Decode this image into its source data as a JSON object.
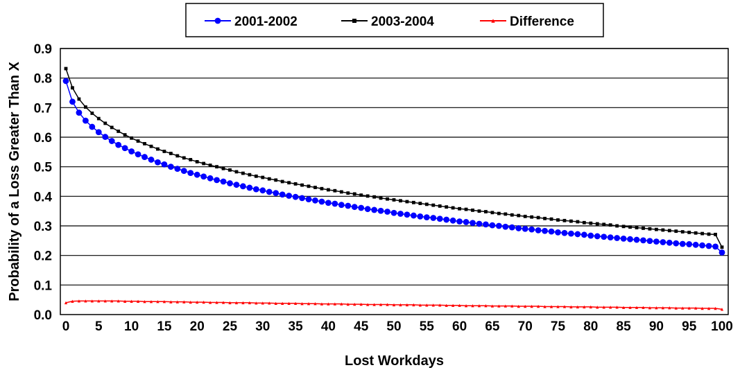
{
  "chart_data": {
    "type": "line",
    "title": "",
    "xlabel": "Lost Workdays",
    "ylabel": "Probability of a Loss Greater Than X",
    "xlim": [
      0,
      100
    ],
    "ylim": [
      0,
      0.9
    ],
    "x_ticks": [
      "0",
      "5",
      "10",
      "15",
      "20",
      "25",
      "30",
      "35",
      "40",
      "45",
      "50",
      "55",
      "60",
      "65",
      "70",
      "75",
      "80",
      "85",
      "90",
      "95",
      "100"
    ],
    "y_ticks": [
      "0.0",
      "0.1",
      "0.2",
      "0.3",
      "0.4",
      "0.5",
      "0.6",
      "0.7",
      "0.8",
      "0.9"
    ],
    "grid": "horizontal",
    "legend_position": "top",
    "x": [
      0,
      1,
      2,
      3,
      4,
      5,
      6,
      7,
      8,
      9,
      10,
      11,
      12,
      13,
      14,
      15,
      16,
      17,
      18,
      19,
      20,
      21,
      22,
      23,
      24,
      25,
      26,
      27,
      28,
      29,
      30,
      31,
      32,
      33,
      34,
      35,
      36,
      37,
      38,
      39,
      40,
      41,
      42,
      43,
      44,
      45,
      46,
      47,
      48,
      49,
      50,
      51,
      52,
      53,
      54,
      55,
      56,
      57,
      58,
      59,
      60,
      61,
      62,
      63,
      64,
      65,
      66,
      67,
      68,
      69,
      70,
      71,
      72,
      73,
      74,
      75,
      76,
      77,
      78,
      79,
      80,
      81,
      82,
      83,
      84,
      85,
      86,
      87,
      88,
      89,
      90,
      91,
      92,
      93,
      94,
      95,
      96,
      97,
      98,
      99,
      100
    ],
    "series": [
      {
        "name": "2001-2002",
        "color": "#0000ff",
        "marker": "circle",
        "values": [
          0.79,
          0.72,
          0.683,
          0.656,
          0.635,
          0.617,
          0.601,
          0.587,
          0.574,
          0.563,
          0.552,
          0.542,
          0.533,
          0.524,
          0.515,
          0.508,
          0.5,
          0.493,
          0.486,
          0.479,
          0.473,
          0.467,
          0.461,
          0.455,
          0.45,
          0.444,
          0.439,
          0.434,
          0.429,
          0.424,
          0.42,
          0.415,
          0.411,
          0.406,
          0.402,
          0.398,
          0.394,
          0.39,
          0.386,
          0.382,
          0.378,
          0.375,
          0.371,
          0.368,
          0.364,
          0.361,
          0.357,
          0.354,
          0.351,
          0.348,
          0.344,
          0.341,
          0.338,
          0.335,
          0.332,
          0.329,
          0.327,
          0.324,
          0.321,
          0.318,
          0.315,
          0.313,
          0.31,
          0.307,
          0.305,
          0.302,
          0.3,
          0.297,
          0.295,
          0.292,
          0.29,
          0.288,
          0.285,
          0.283,
          0.281,
          0.278,
          0.276,
          0.274,
          0.272,
          0.27,
          0.267,
          0.265,
          0.263,
          0.261,
          0.259,
          0.257,
          0.255,
          0.253,
          0.251,
          0.249,
          0.247,
          0.245,
          0.243,
          0.241,
          0.239,
          0.238,
          0.236,
          0.234,
          0.232,
          0.23,
          0.21
        ]
      },
      {
        "name": "2003-2004",
        "color": "#000000",
        "marker": "square",
        "values": [
          0.832,
          0.767,
          0.729,
          0.702,
          0.681,
          0.663,
          0.647,
          0.633,
          0.62,
          0.608,
          0.597,
          0.587,
          0.578,
          0.569,
          0.56,
          0.552,
          0.545,
          0.537,
          0.53,
          0.524,
          0.517,
          0.511,
          0.505,
          0.5,
          0.494,
          0.489,
          0.483,
          0.478,
          0.473,
          0.468,
          0.464,
          0.459,
          0.455,
          0.45,
          0.446,
          0.442,
          0.438,
          0.434,
          0.43,
          0.426,
          0.422,
          0.419,
          0.415,
          0.411,
          0.408,
          0.404,
          0.401,
          0.398,
          0.394,
          0.391,
          0.388,
          0.385,
          0.382,
          0.379,
          0.376,
          0.373,
          0.37,
          0.367,
          0.364,
          0.361,
          0.358,
          0.356,
          0.353,
          0.35,
          0.348,
          0.345,
          0.342,
          0.34,
          0.337,
          0.335,
          0.332,
          0.33,
          0.328,
          0.325,
          0.323,
          0.32,
          0.318,
          0.316,
          0.314,
          0.311,
          0.309,
          0.307,
          0.305,
          0.303,
          0.3,
          0.298,
          0.296,
          0.294,
          0.292,
          0.29,
          0.288,
          0.286,
          0.284,
          0.282,
          0.28,
          0.278,
          0.276,
          0.274,
          0.272,
          0.271,
          0.228
        ]
      },
      {
        "name": "Difference",
        "color": "#ff0000",
        "marker": "triangle",
        "values": [
          0.04,
          0.045,
          0.046,
          0.046,
          0.046,
          0.046,
          0.046,
          0.046,
          0.046,
          0.045,
          0.045,
          0.045,
          0.044,
          0.044,
          0.044,
          0.044,
          0.043,
          0.043,
          0.043,
          0.042,
          0.042,
          0.042,
          0.041,
          0.041,
          0.041,
          0.04,
          0.04,
          0.04,
          0.04,
          0.039,
          0.039,
          0.039,
          0.038,
          0.038,
          0.038,
          0.038,
          0.037,
          0.037,
          0.037,
          0.036,
          0.036,
          0.036,
          0.036,
          0.035,
          0.035,
          0.035,
          0.034,
          0.034,
          0.034,
          0.034,
          0.033,
          0.033,
          0.033,
          0.033,
          0.032,
          0.032,
          0.032,
          0.032,
          0.031,
          0.031,
          0.031,
          0.03,
          0.03,
          0.03,
          0.03,
          0.029,
          0.029,
          0.029,
          0.029,
          0.028,
          0.028,
          0.028,
          0.028,
          0.027,
          0.027,
          0.027,
          0.027,
          0.026,
          0.026,
          0.026,
          0.026,
          0.025,
          0.025,
          0.025,
          0.025,
          0.024,
          0.024,
          0.024,
          0.024,
          0.023,
          0.023,
          0.023,
          0.023,
          0.022,
          0.022,
          0.022,
          0.022,
          0.021,
          0.021,
          0.021,
          0.018
        ]
      }
    ]
  }
}
